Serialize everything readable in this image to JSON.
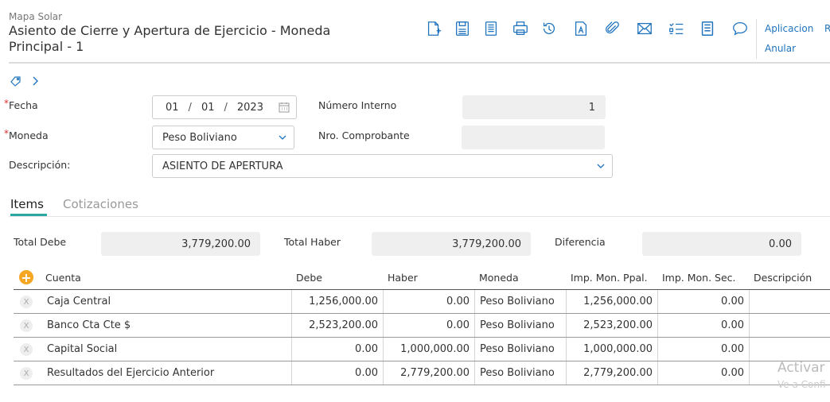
{
  "header": {
    "breadcrumb": "Mapa Solar",
    "title": "Asiento de Cierre y Apertura de Ejercicio - Moneda Principal - 1"
  },
  "toolbar": {
    "icons": [
      "new-document-icon",
      "save-icon",
      "notes-icon",
      "print-icon",
      "history-icon",
      "text-document-icon",
      "attachment-icon",
      "email-icon",
      "checklist-icon",
      "list-document-icon",
      "comment-icon"
    ],
    "link_aplicacion": "Aplicacion",
    "link_anular": "Anular",
    "link_more": "R"
  },
  "form": {
    "fecha_label": "Fecha",
    "fecha_day": "01",
    "fecha_month": "01",
    "fecha_year": "2023",
    "numero_interno_label": "Número Interno",
    "numero_interno_value": "1",
    "moneda_label": "Moneda",
    "moneda_value": "Peso Boliviano",
    "nro_comprobante_label": "Nro. Comprobante",
    "nro_comprobante_value": "",
    "descripcion_label": "Descripción:",
    "descripcion_value": "ASIENTO DE APERTURA",
    "required_mark": "*"
  },
  "tabs": [
    {
      "label": "Items",
      "active": true
    },
    {
      "label": "Cotizaciones",
      "active": false
    }
  ],
  "totals": {
    "total_debe_label": "Total Debe",
    "total_debe_value": "3,779,200.00",
    "total_haber_label": "Total Haber",
    "total_haber_value": "3,779,200.00",
    "diferencia_label": "Diferencia",
    "diferencia_value": "0.00"
  },
  "grid": {
    "add_symbol": "+",
    "delete_symbol": "X",
    "columns": [
      "Cuenta",
      "Debe",
      "Haber",
      "Moneda",
      "Imp. Mon. Ppal.",
      "Imp. Mon. Sec.",
      "Descripción"
    ],
    "rows": [
      {
        "cuenta": "Caja Central",
        "debe": "1,256,000.00",
        "haber": "0.00",
        "moneda": "Peso Boliviano",
        "ppal": "1,256,000.00",
        "sec": "0.00",
        "desc": ""
      },
      {
        "cuenta": "Banco Cta Cte $",
        "debe": "2,523,200.00",
        "haber": "0.00",
        "moneda": "Peso Boliviano",
        "ppal": "2,523,200.00",
        "sec": "0.00",
        "desc": ""
      },
      {
        "cuenta": "Capital Social",
        "debe": "0.00",
        "haber": "1,000,000.00",
        "moneda": "Peso Boliviano",
        "ppal": "1,000,000.00",
        "sec": "0.00",
        "desc": ""
      },
      {
        "cuenta": "Resultados del Ejercicio Anterior",
        "debe": "0.00",
        "haber": "2,779,200.00",
        "moneda": "Peso Boliviano",
        "ppal": "2,779,200.00",
        "sec": "0.00",
        "desc": ""
      }
    ]
  },
  "watermark": {
    "line1": "Activar",
    "line2": "Ve a Confi"
  },
  "colors": {
    "accent": "#1e73be",
    "tab_underline": "#2aa7a1",
    "add_button": "#f5a623",
    "required": "#dd3333"
  }
}
